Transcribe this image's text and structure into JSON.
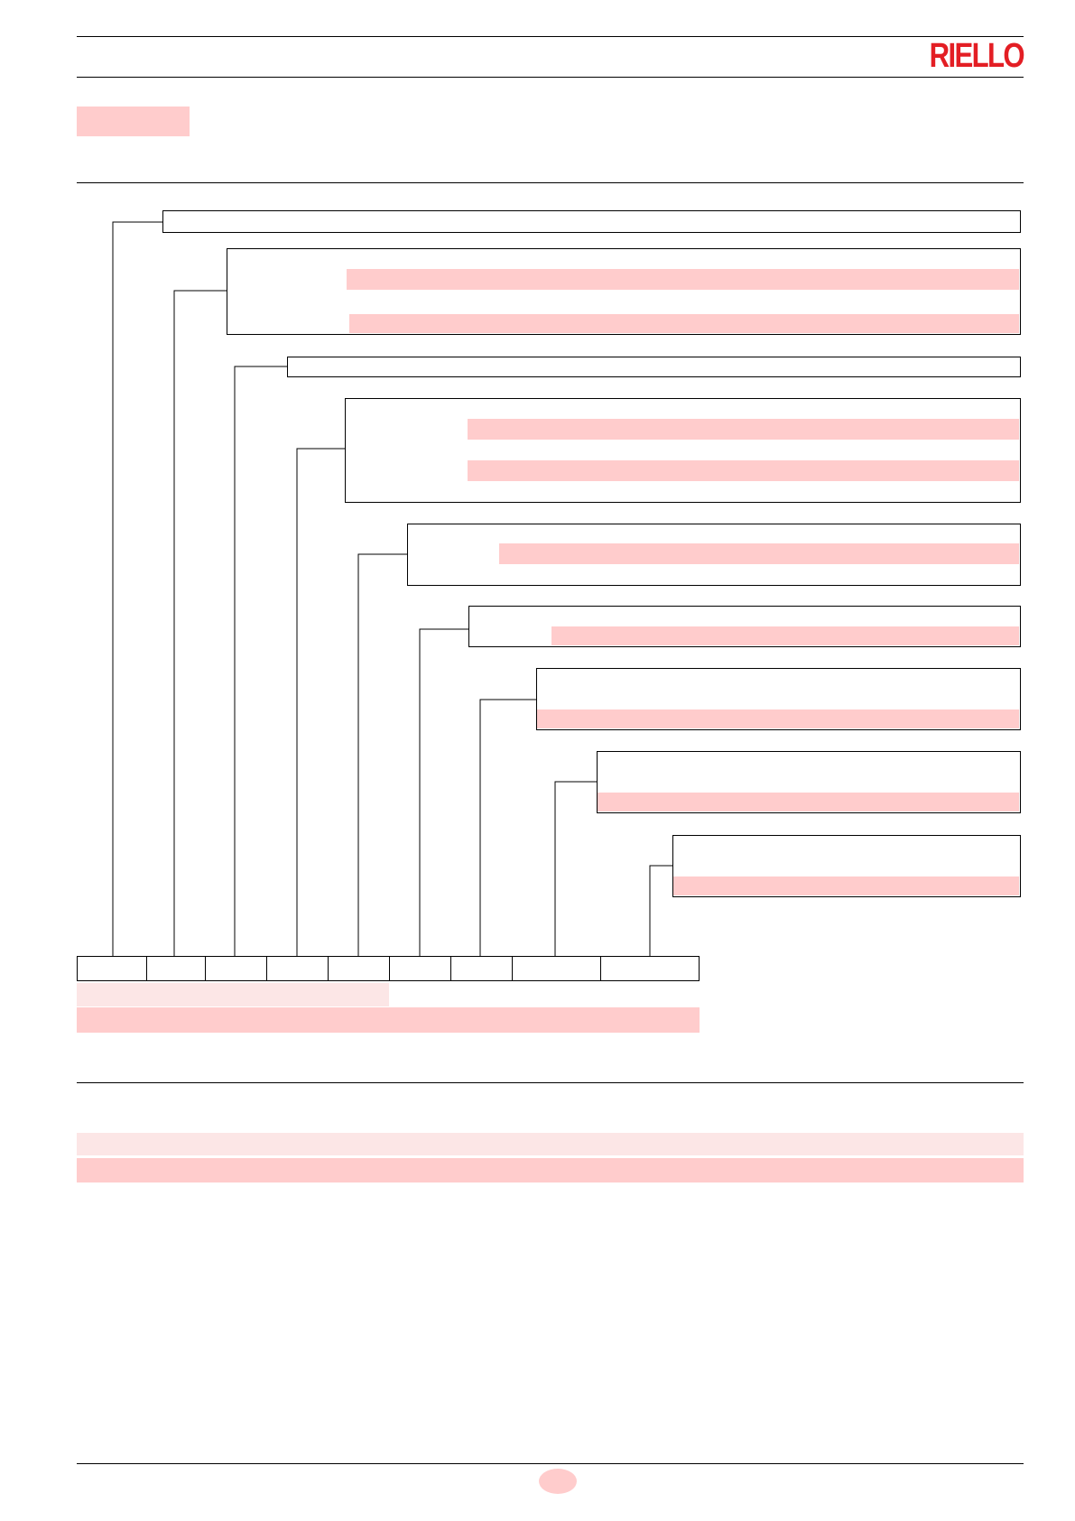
{
  "header": {
    "brand_logo": "RIELLO",
    "brand_color": "#e31e24"
  },
  "section_title": {
    "highlight_color": "#ffcccc",
    "text": ""
  },
  "designation_diagram": {
    "field_boxes": [
      {
        "id": "field-1",
        "has_highlight_rows": 0
      },
      {
        "id": "field-2",
        "has_highlight_rows": 2
      },
      {
        "id": "field-3",
        "has_highlight_rows": 0
      },
      {
        "id": "field-4",
        "has_highlight_rows": 2
      },
      {
        "id": "field-5",
        "has_highlight_rows": 1
      },
      {
        "id": "field-6",
        "has_highlight_rows": 1
      },
      {
        "id": "field-7",
        "has_highlight_rows": 1
      },
      {
        "id": "field-8",
        "has_highlight_rows": 1
      },
      {
        "id": "field-9",
        "has_highlight_rows": 1
      }
    ],
    "code_cells_count": 9,
    "caption_rows": 2
  },
  "bottom_section": {
    "highlight_rows": 2
  },
  "footer": {
    "page_number": "",
    "page_marker_color": "#ffcccc"
  }
}
